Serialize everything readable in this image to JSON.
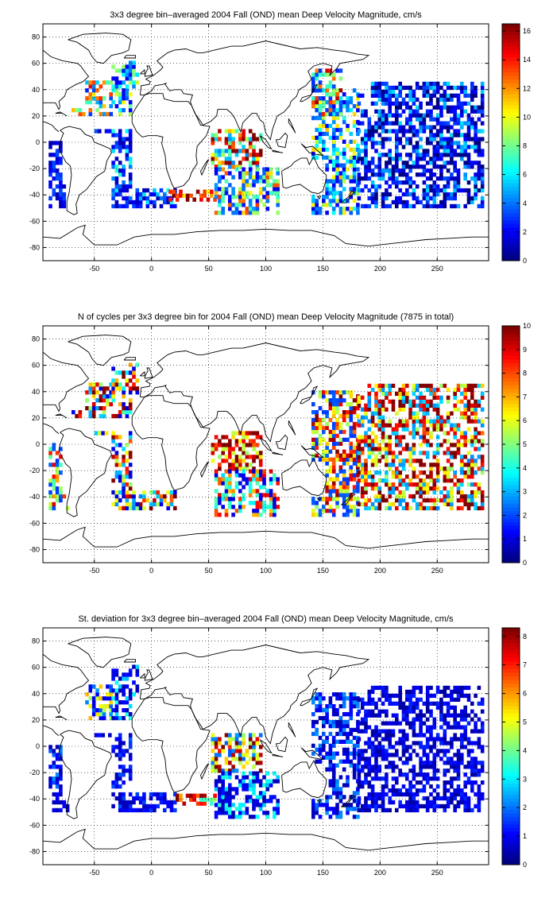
{
  "chart_data": [
    {
      "type": "heatmap",
      "title": "3x3 degree bin–averaged 2004 Fall (OND) mean Deep Velocity Magnitude, cm/s",
      "xlabel": "",
      "ylabel": "",
      "xlim": [
        -95,
        295
      ],
      "ylim": [
        -90,
        90
      ],
      "xticks": [
        -50,
        0,
        50,
        100,
        150,
        200,
        250
      ],
      "yticks": [
        -80,
        -60,
        -40,
        -20,
        0,
        20,
        40,
        60,
        80
      ],
      "grid": true,
      "bin_size_deg": 3,
      "colormap": "jet",
      "colorbar": {
        "min": 0,
        "max": 16.5,
        "ticks": [
          0,
          2,
          4,
          6,
          8,
          10,
          12,
          14,
          16
        ]
      },
      "regions": [
        {
          "lon": [
            -70,
            -35
          ],
          "lat": [
            20,
            45
          ],
          "values": [
            3,
            5,
            8,
            12,
            14
          ]
        },
        {
          "lon": [
            -35,
            -5
          ],
          "lat": [
            20,
            60
          ],
          "values": [
            2,
            4,
            6,
            9
          ]
        },
        {
          "lon": [
            -90,
            -70
          ],
          "lat": [
            -50,
            0
          ],
          "values": [
            1,
            2,
            3
          ]
        },
        {
          "lon": [
            -50,
            20
          ],
          "lat": [
            -50,
            10
          ],
          "values": [
            1,
            2,
            3,
            4,
            6
          ]
        },
        {
          "lon": [
            15,
            55
          ],
          "lat": [
            -45,
            -35
          ],
          "values": [
            14,
            16,
            12
          ]
        },
        {
          "lon": [
            40,
            95
          ],
          "lat": [
            -20,
            20
          ],
          "values": [
            8,
            12,
            15,
            16,
            5
          ]
        },
        {
          "lon": [
            55,
            110
          ],
          "lat": [
            -55,
            -20
          ],
          "values": [
            2,
            4,
            8,
            12
          ]
        },
        {
          "lon": [
            140,
            180
          ],
          "lat": [
            -55,
            40
          ],
          "values": [
            2,
            4,
            6,
            10
          ]
        },
        {
          "lon": [
            180,
            290
          ],
          "lat": [
            -50,
            45
          ],
          "values": [
            0,
            1,
            2,
            3,
            5
          ]
        },
        {
          "lon": [
            140,
            165
          ],
          "lat": [
            20,
            55
          ],
          "values": [
            3,
            8,
            14
          ]
        }
      ]
    },
    {
      "type": "heatmap",
      "title": "N of cycles per 3x3 degree bin for 2004 Fall (OND) mean Deep Velocity Magnitude (7875 in total)",
      "xlabel": "",
      "ylabel": "",
      "xlim": [
        -95,
        295
      ],
      "ylim": [
        -90,
        90
      ],
      "xticks": [
        -50,
        0,
        50,
        100,
        150,
        200,
        250
      ],
      "yticks": [
        -80,
        -60,
        -40,
        -20,
        0,
        20,
        40,
        60,
        80
      ],
      "grid": true,
      "bin_size_deg": 3,
      "colormap": "jet",
      "colorbar": {
        "min": 0,
        "max": 10,
        "ticks": [
          0,
          1,
          2,
          3,
          4,
          5,
          6,
          7,
          8,
          9,
          10
        ]
      },
      "regions": [
        {
          "lon": [
            -70,
            -35
          ],
          "lat": [
            20,
            45
          ],
          "values": [
            1,
            3,
            6,
            9,
            10
          ]
        },
        {
          "lon": [
            -35,
            -5
          ],
          "lat": [
            20,
            60
          ],
          "values": [
            1,
            4,
            7,
            10
          ]
        },
        {
          "lon": [
            -90,
            -70
          ],
          "lat": [
            -50,
            0
          ],
          "values": [
            2,
            5,
            8
          ]
        },
        {
          "lon": [
            -50,
            20
          ],
          "lat": [
            -50,
            10
          ],
          "values": [
            1,
            3,
            6,
            9
          ]
        },
        {
          "lon": [
            40,
            95
          ],
          "lat": [
            -20,
            20
          ],
          "values": [
            6,
            9,
            10
          ]
        },
        {
          "lon": [
            55,
            110
          ],
          "lat": [
            -55,
            -20
          ],
          "values": [
            1,
            4,
            8
          ]
        },
        {
          "lon": [
            140,
            180
          ],
          "lat": [
            -55,
            40
          ],
          "values": [
            2,
            6,
            9
          ]
        },
        {
          "lon": [
            180,
            290
          ],
          "lat": [
            -50,
            45
          ],
          "values": [
            3,
            6,
            9,
            10
          ]
        }
      ]
    },
    {
      "type": "heatmap",
      "title": "St. deviation for 3x3 degree bin–averaged 2004 Fall (OND) mean Deep Velocity Magnitude, cm/s",
      "xlabel": "",
      "ylabel": "",
      "xlim": [
        -95,
        295
      ],
      "ylim": [
        -90,
        90
      ],
      "xticks": [
        -50,
        0,
        50,
        100,
        150,
        200,
        250
      ],
      "yticks": [
        -80,
        -60,
        -40,
        -20,
        0,
        20,
        40,
        60,
        80
      ],
      "grid": true,
      "bin_size_deg": 3,
      "colormap": "jet",
      "colorbar": {
        "min": 0,
        "max": 8.3,
        "ticks": [
          0,
          1,
          2,
          3,
          4,
          5,
          6,
          7,
          8
        ]
      },
      "regions": [
        {
          "lon": [
            -70,
            -35
          ],
          "lat": [
            20,
            45
          ],
          "values": [
            1,
            2,
            5
          ]
        },
        {
          "lon": [
            -35,
            -5
          ],
          "lat": [
            20,
            60
          ],
          "values": [
            0.5,
            1,
            3
          ]
        },
        {
          "lon": [
            -90,
            -70
          ],
          "lat": [
            -50,
            0
          ],
          "values": [
            0.5,
            1,
            2
          ]
        },
        {
          "lon": [
            -50,
            20
          ],
          "lat": [
            -50,
            10
          ],
          "values": [
            0.5,
            1,
            1.5
          ]
        },
        {
          "lon": [
            15,
            55
          ],
          "lat": [
            -45,
            -35
          ],
          "values": [
            4,
            7,
            8
          ]
        },
        {
          "lon": [
            40,
            95
          ],
          "lat": [
            -20,
            20
          ],
          "values": [
            2,
            5,
            8
          ]
        },
        {
          "lon": [
            55,
            110
          ],
          "lat": [
            -55,
            -20
          ],
          "values": [
            0.5,
            1,
            3
          ]
        },
        {
          "lon": [
            140,
            180
          ],
          "lat": [
            -55,
            40
          ],
          "values": [
            0.5,
            1,
            2
          ]
        },
        {
          "lon": [
            180,
            290
          ],
          "lat": [
            -50,
            45
          ],
          "values": [
            0.3,
            0.8,
            1.2
          ]
        }
      ]
    }
  ]
}
